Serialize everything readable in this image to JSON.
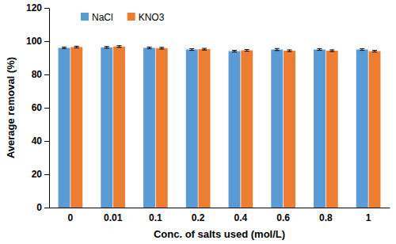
{
  "chart_data": {
    "type": "bar",
    "x_label": "Conc. of salts used  (mol/L)",
    "y_label": "Average removal (%)",
    "categories": [
      "0",
      "0.01",
      "0.1",
      "0.2",
      "0.4",
      "0.6",
      "0.8",
      "1"
    ],
    "series": [
      {
        "name": "NaCl",
        "color": "#5b9bd5",
        "values": [
          96,
          96.3,
          96,
          95,
          94,
          95,
          95,
          95
        ],
        "errors": [
          0.5,
          0.5,
          0.5,
          0.5,
          0.5,
          0.6,
          0.5,
          0.5
        ]
      },
      {
        "name": "KNO3",
        "color": "#ed7d31",
        "values": [
          96.5,
          96.8,
          95.8,
          95.2,
          94.5,
          94.3,
          94.3,
          94
        ],
        "errors": [
          0.5,
          0.5,
          0.5,
          0.5,
          0.5,
          0.5,
          0.5,
          0.5
        ]
      }
    ],
    "ylim": [
      0,
      120
    ],
    "yticks": [
      0,
      20,
      40,
      60,
      80,
      100,
      120
    ],
    "grid": false,
    "legend": "top-left"
  }
}
